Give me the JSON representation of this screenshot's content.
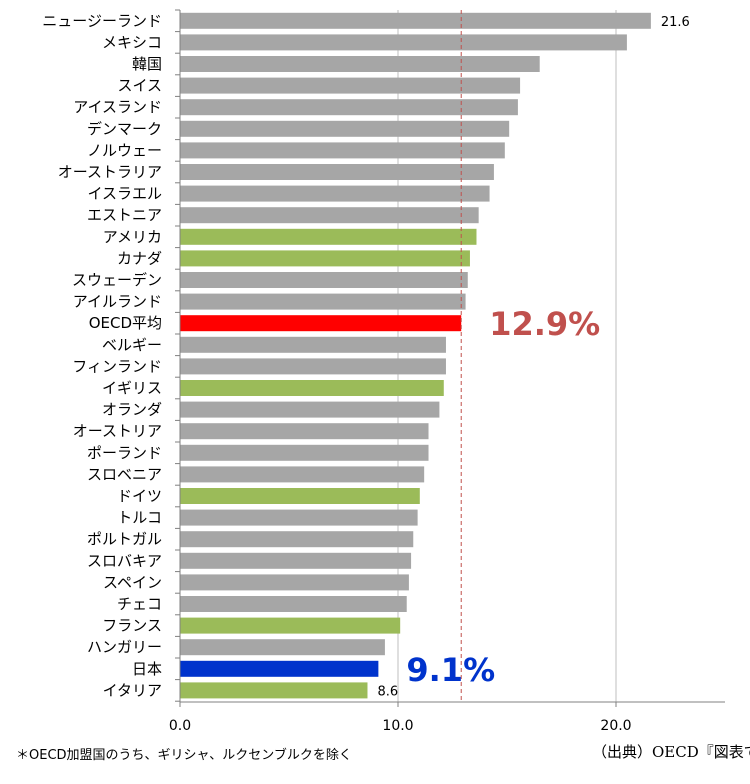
{
  "chart_data": {
    "type": "bar",
    "orientation": "horizontal",
    "xlim": [
      0,
      25
    ],
    "x_ticks": [
      0,
      10,
      20
    ],
    "x_tick_labels": [
      "0.0",
      "10.0",
      "20.0"
    ],
    "reference_line_value": 12.9,
    "categories": [
      "ニュージーランド",
      "メキシコ",
      "韓国",
      "スイス",
      "アイスランド",
      "デンマーク",
      "ノルウェー",
      "オーストラリア",
      "イスラエル",
      "エストニア",
      "アメリカ",
      "カナダ",
      "スウェーデン",
      "アイルランド",
      "OECD平均",
      "ベルギー",
      "フィンランド",
      "イギリス",
      "オランダ",
      "オーストリア",
      "ポーランド",
      "スロベニア",
      "ドイツ",
      "トルコ",
      "ポルトガル",
      "スロバキア",
      "スペイン",
      "チェコ",
      "フランス",
      "ハンガリー",
      "日本",
      "イタリア"
    ],
    "values": [
      21.6,
      20.5,
      16.5,
      15.6,
      15.5,
      15.1,
      14.9,
      14.4,
      14.2,
      13.7,
      13.6,
      13.3,
      13.2,
      13.1,
      12.9,
      12.2,
      12.2,
      12.1,
      11.9,
      11.4,
      11.4,
      11.2,
      11.0,
      10.9,
      10.7,
      10.6,
      10.5,
      10.4,
      10.1,
      9.4,
      9.1,
      8.6
    ],
    "bar_colors": [
      "gray",
      "gray",
      "gray",
      "gray",
      "gray",
      "gray",
      "gray",
      "gray",
      "gray",
      "gray",
      "green",
      "green",
      "gray",
      "gray",
      "red",
      "gray",
      "gray",
      "green",
      "gray",
      "gray",
      "gray",
      "gray",
      "green",
      "gray",
      "gray",
      "gray",
      "gray",
      "gray",
      "green",
      "gray",
      "blue",
      "green"
    ],
    "data_labels": [
      {
        "index": 0,
        "text": "21.6"
      },
      {
        "index": 31,
        "text": "8.6"
      }
    ],
    "annotations": [
      {
        "index": 14,
        "text": "12.9%",
        "color": "#c0504d"
      },
      {
        "index": 30,
        "text": "9.1%",
        "color": "#0033cc"
      }
    ]
  },
  "colors": {
    "gray": "#a6a6a6",
    "green": "#9bbb59",
    "red": "#ff0000",
    "blue": "#0033cc",
    "grid": "#bfbfbf",
    "axis": "#808080",
    "refline": "#c0504d"
  },
  "footnote": "＊OECD加盟国のうち、ギリシャ、ルクセンブルクを除く",
  "source": "（出典）OECD『図表で"
}
